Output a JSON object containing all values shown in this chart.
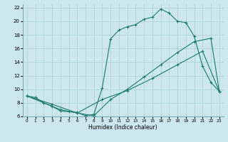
{
  "xlabel": "Humidex (Indice chaleur)",
  "bg_color": "#cce8ed",
  "grid_color": "#aacdd4",
  "line_color": "#1a7a6e",
  "xlim": [
    -0.5,
    23.5
  ],
  "ylim": [
    6,
    22.5
  ],
  "xticks": [
    0,
    1,
    2,
    3,
    4,
    5,
    6,
    7,
    8,
    9,
    10,
    11,
    12,
    13,
    14,
    15,
    16,
    17,
    18,
    19,
    20,
    21,
    22,
    23
  ],
  "yticks": [
    6,
    8,
    10,
    12,
    14,
    16,
    18,
    20,
    22
  ],
  "line1_x": [
    0,
    1,
    2,
    3,
    4,
    5,
    6,
    7,
    8,
    9,
    10,
    11,
    12,
    13,
    14,
    15,
    16,
    17,
    18,
    19,
    20,
    21,
    22,
    23
  ],
  "line1_y": [
    9.0,
    8.8,
    8.0,
    7.5,
    6.8,
    6.7,
    6.6,
    6.1,
    6.3,
    10.2,
    17.4,
    18.7,
    19.2,
    19.5,
    20.3,
    20.6,
    21.8,
    21.2,
    20.0,
    19.8,
    17.8,
    13.4,
    11.0,
    9.7
  ],
  "line2_x": [
    0,
    2,
    4,
    6,
    8,
    10,
    12,
    14,
    16,
    18,
    20,
    22,
    23
  ],
  "line2_y": [
    9.0,
    8.0,
    7.0,
    6.5,
    6.1,
    8.5,
    10.0,
    11.8,
    13.6,
    15.4,
    17.0,
    17.5,
    9.7
  ],
  "line3_x": [
    0,
    3,
    6,
    9,
    12,
    15,
    18,
    21,
    23
  ],
  "line3_y": [
    9.0,
    7.8,
    6.5,
    8.5,
    9.8,
    11.6,
    13.6,
    15.6,
    9.7
  ]
}
